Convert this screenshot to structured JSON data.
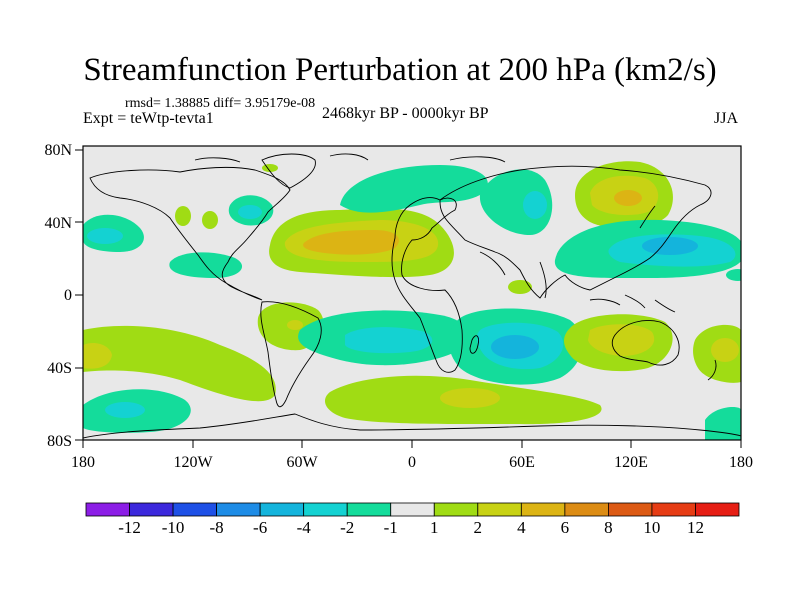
{
  "title": "Streamfunction Perturbation at 200 hPa (km2/s)",
  "stats": "rmsd= 1.38885 diff= 3.95179e-08",
  "experiment": "Expt = teWtp-tevta1",
  "period": "2468kyr BP - 0000kyr BP",
  "season": "JJA",
  "map": {
    "projection": "cylindrical-equidistant",
    "lon_ticks": [
      "180",
      "120W",
      "60W",
      "0",
      "60E",
      "120E",
      "180"
    ],
    "lat_ticks": [
      "80N",
      "40N",
      "0",
      "40S",
      "80S"
    ],
    "background_color": "#e8e8e8"
  },
  "colorbar": {
    "labels": [
      "-12",
      "-10",
      "-8",
      "-6",
      "-4",
      "-2",
      "-1",
      "1",
      "2",
      "4",
      "6",
      "8",
      "10",
      "12"
    ],
    "colors": [
      "#8c1ee6",
      "#3c28dc",
      "#1e50e6",
      "#1e8ce6",
      "#14b4dc",
      "#14d2d2",
      "#14dc9b",
      "#e8e8e8",
      "#a0dc14",
      "#c8d214",
      "#dcb414",
      "#dc8c14",
      "#dc5a14",
      "#e63c14",
      "#e61e14"
    ]
  },
  "anomalies": [
    {
      "region": "North Atlantic / North Africa",
      "value": 6
    },
    {
      "region": "North Pacific (East Asia)",
      "value": 6
    },
    {
      "region": "Western North Pacific",
      "value": -4
    },
    {
      "region": "Eurasia",
      "value": -4
    },
    {
      "region": "Southern Indian Ocean",
      "value": -4
    },
    {
      "region": "South Pacific",
      "value": -4
    },
    {
      "region": "Australia",
      "value": 4
    },
    {
      "region": "South America",
      "value": 4
    }
  ]
}
